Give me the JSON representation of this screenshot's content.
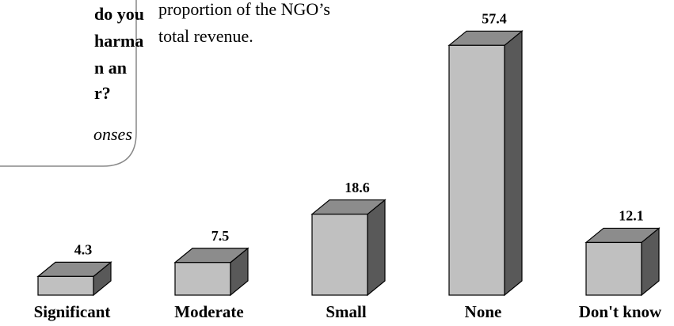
{
  "chart_data": {
    "type": "bar3d",
    "callout_lines": [
      "do you",
      "harma",
      "n an",
      "r?"
    ],
    "callout_note": "onses",
    "note_lines": [
      "proportion of the NGO’s",
      "total revenue."
    ],
    "categories": [
      "Significant",
      "Moderate",
      "Small",
      "None",
      "Don't know"
    ],
    "values": [
      4.3,
      7.5,
      18.6,
      57.4,
      12.1
    ],
    "colors": {
      "front": "#c0c0c0",
      "top": "#8c8c8c",
      "side": "#595959"
    }
  }
}
